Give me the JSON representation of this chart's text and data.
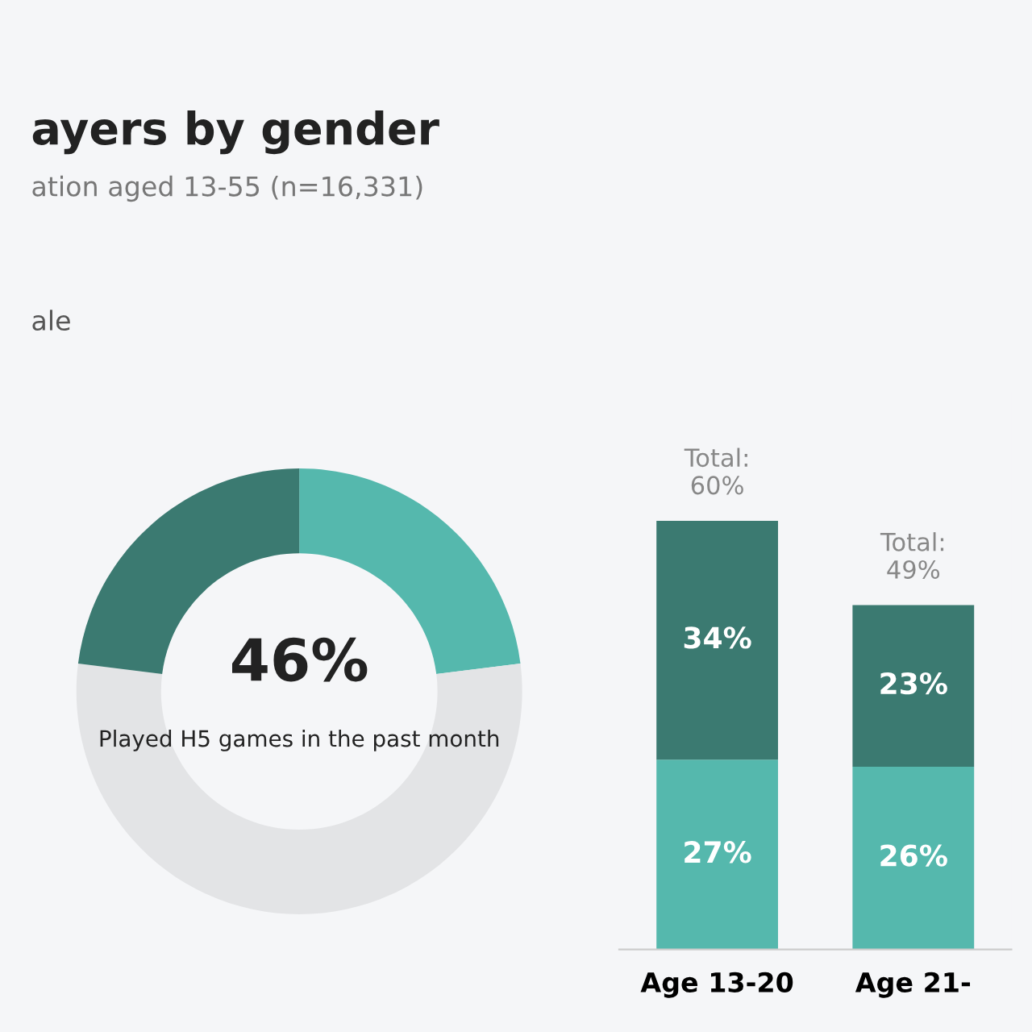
{
  "chart_data": [
    {
      "type": "donut",
      "title": "ayers by gender",
      "subtitle": "ation aged 13-55 (n=16,331)",
      "annotations": [
        "ale",
        "46%",
        "Played H5 games in the past month"
      ],
      "categories": [
        null,
        null,
        null
      ],
      "values": [
        23,
        54,
        23
      ],
      "colors": [
        "#55b8ad",
        "#e3e4e6",
        "#3b7a71"
      ]
    },
    {
      "type": "bar",
      "stacked": true,
      "categories": [
        "Age 13-20",
        "Age 21-"
      ],
      "series": [
        {
          "color": "#55b8ad",
          "values": [
            27,
            26
          ],
          "value_labels": [
            "27%",
            "26%"
          ]
        },
        {
          "color": "#3b7a71",
          "values": [
            34,
            23
          ],
          "value_labels": [
            "34%",
            "23%"
          ]
        }
      ],
      "totals": [
        "Total:\n60%",
        "Total:\n49%"
      ]
    }
  ]
}
